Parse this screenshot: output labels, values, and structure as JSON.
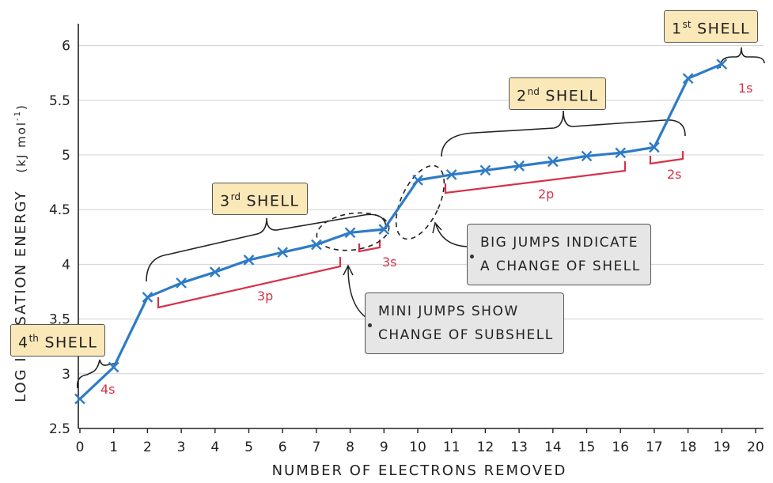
{
  "chart_data": {
    "type": "line",
    "xlabel": "NUMBER OF ELECTRONS REMOVED",
    "ylabel": "LOG IONISATION ENERGY",
    "ylabel_unit": "(kJ mol",
    "ylabel_unit_sup": "-1",
    "ylabel_unit_close": ")",
    "xlim": [
      0,
      20
    ],
    "ylim": [
      2.5,
      6.2
    ],
    "x_ticks": [
      "0",
      "1",
      "2",
      "3",
      "4",
      "5",
      "6",
      "7",
      "8",
      "9",
      "10",
      "11",
      "12",
      "13",
      "14",
      "15",
      "16",
      "17",
      "18",
      "19",
      "20"
    ],
    "y_ticks": [
      "2.5",
      "3",
      "3.5",
      "4",
      "4.5",
      "5",
      "5.5",
      "6"
    ],
    "grid": true,
    "series_color": "#2e7bc6",
    "points": [
      [
        0,
        2.77
      ],
      [
        1,
        3.06
      ],
      [
        2,
        3.7
      ],
      [
        3,
        3.83
      ],
      [
        4,
        3.93
      ],
      [
        5,
        4.04
      ],
      [
        6,
        4.11
      ],
      [
        7,
        4.18
      ],
      [
        8,
        4.29
      ],
      [
        9,
        4.32
      ],
      [
        10,
        4.77
      ],
      [
        11,
        4.82
      ],
      [
        12,
        4.86
      ],
      [
        13,
        4.9
      ],
      [
        14,
        4.94
      ],
      [
        15,
        4.99
      ],
      [
        16,
        5.02
      ],
      [
        17,
        5.07
      ],
      [
        18,
        5.7
      ],
      [
        19,
        5.83
      ]
    ],
    "subshell_labels": [
      "4s",
      "3p",
      "3s",
      "2p",
      "2s",
      "1s"
    ],
    "subshell_color": "#d6314a"
  },
  "shells": {
    "first": {
      "num": "1",
      "sup": "st",
      "word": "SHELL"
    },
    "second": {
      "num": "2",
      "sup": "nd",
      "word": "SHELL"
    },
    "third": {
      "num": "3",
      "sup": "rd",
      "word": "SHELL"
    },
    "fourth": {
      "num": "4",
      "sup": "th",
      "word": "SHELL"
    }
  },
  "notes": {
    "big_jumps": [
      "BIG JUMPS INDICATE",
      "A CHANGE OF SHELL"
    ],
    "mini_jumps": [
      "MINI JUMPS SHOW",
      "CHANGE OF SUBSHELL"
    ]
  },
  "colors": {
    "box_fill": "#fbe8b8",
    "note_fill": "#e6e6e6",
    "grid": "#d0d0d0"
  }
}
